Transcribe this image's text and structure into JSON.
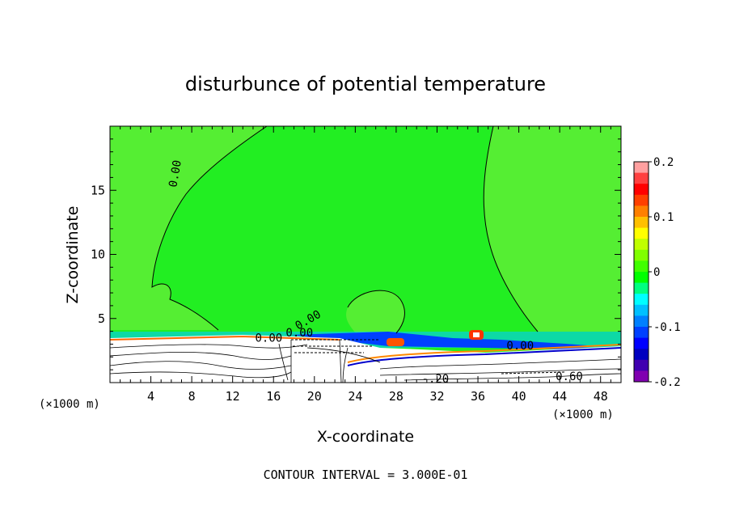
{
  "chart_data": {
    "type": "heatmap",
    "title": "disturbunce of potential temperature",
    "xlabel": "X-coordinate",
    "ylabel": "Z-coordinate",
    "x_unit": "(×1000 m)",
    "y_unit": "(×1000 m)",
    "xlim": [
      0,
      50
    ],
    "ylim": [
      0,
      20
    ],
    "x_ticks": [
      4,
      8,
      12,
      16,
      20,
      24,
      28,
      32,
      36,
      40,
      44,
      48
    ],
    "y_ticks": [
      5,
      10,
      15
    ],
    "colorbar": {
      "min": -0.2,
      "max": 0.2,
      "tick_values": [
        0.2,
        0.1,
        0,
        -0.1,
        -0.2
      ],
      "tick_labels": [
        "0.2",
        "0.1",
        "0",
        "-0.1",
        "-0.2"
      ],
      "colors": [
        "#ffa0a0",
        "#ff4040",
        "#ff0000",
        "#ff4000",
        "#ff8000",
        "#ffc000",
        "#ffff00",
        "#c0ff00",
        "#80ff00",
        "#40ff00",
        "#00ff00",
        "#00ff80",
        "#00ffff",
        "#00c0ff",
        "#0080ff",
        "#0040ff",
        "#0000ff",
        "#0000c0",
        "#4000b0",
        "#8000b0"
      ]
    },
    "contour_labels": [
      "0.00",
      "0.00",
      "0.60",
      "0.00",
      "0.00",
      "-.20",
      "0.00"
    ],
    "footer": "CONTOUR INTERVAL = 3.000E-01",
    "colors": {
      "background_field": "#22ee22",
      "warm_patch": "#66ee33",
      "white_zone": "#ffffff"
    }
  }
}
